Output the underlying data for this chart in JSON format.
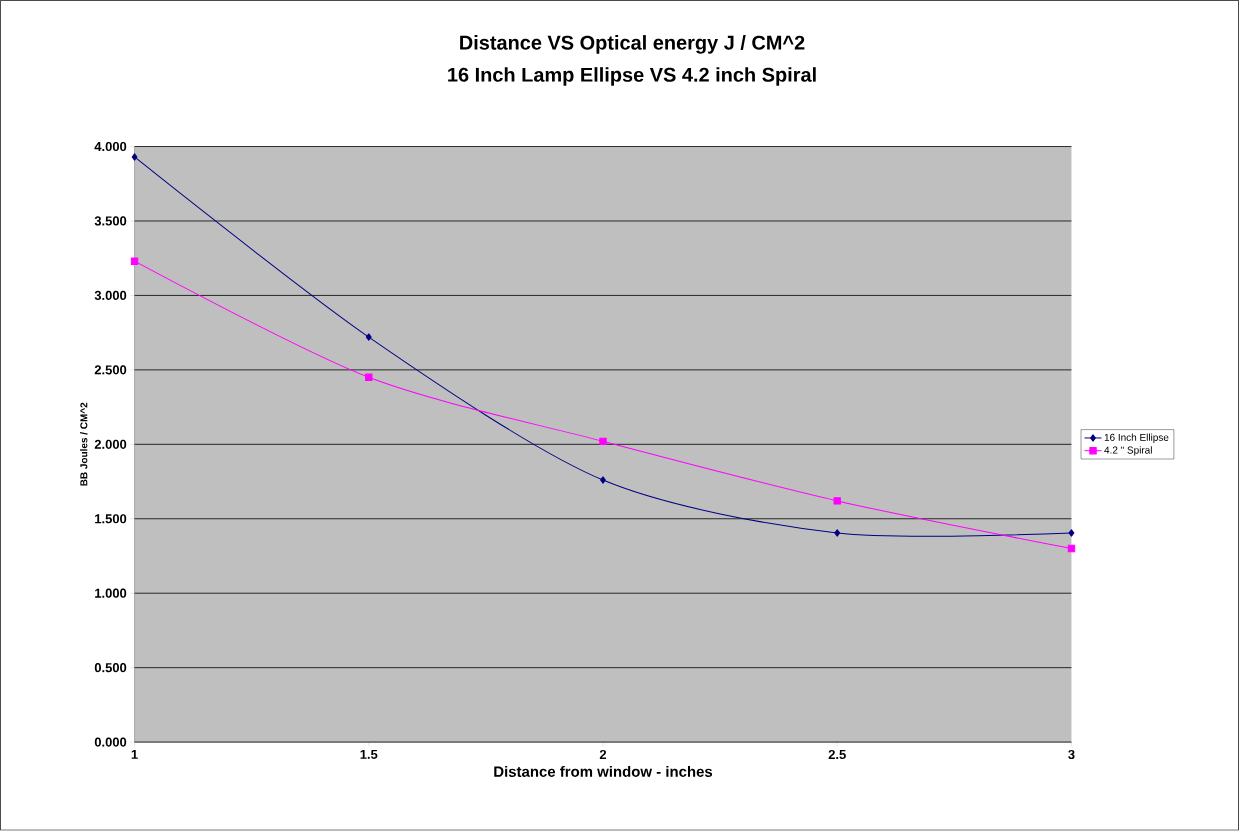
{
  "chart_data": {
    "type": "line",
    "title": "Distance VS Optical energy J / CM^2",
    "subtitle": "16 Inch Lamp Ellipse VS 4.2 inch Spiral",
    "xlabel": "Distance from window - inches",
    "ylabel": "BB Joules / CM^2",
    "x": [
      1,
      1.5,
      2,
      2.5,
      3
    ],
    "series": [
      {
        "name": "16 Inch Ellipse",
        "color": "#000080",
        "marker": "diamond",
        "values": [
          3.93,
          2.72,
          1.76,
          1.405,
          1.405
        ]
      },
      {
        "name": "4.2 \" Spiral",
        "color": "#ff00ff",
        "marker": "square",
        "values": [
          3.23,
          2.45,
          2.02,
          1.62,
          1.3
        ]
      }
    ],
    "xlim": [
      1,
      3
    ],
    "xticks": [
      1,
      1.5,
      2,
      2.5,
      3
    ],
    "ylim": [
      0,
      4
    ],
    "yticks": [
      {
        "value": 0,
        "label": "0.000"
      },
      {
        "value": 0.5,
        "label": "0.500"
      },
      {
        "value": 1,
        "label": "1.000"
      },
      {
        "value": 1.5,
        "label": "1.500"
      },
      {
        "value": 2,
        "label": "2.000"
      },
      {
        "value": 2.5,
        "label": "2.500"
      },
      {
        "value": 3,
        "label": "3.000"
      },
      {
        "value": 3.5,
        "label": "3.500"
      },
      {
        "value": 4,
        "label": "4.000"
      }
    ],
    "grid": "y",
    "legend": "right",
    "line_style": "solid"
  }
}
